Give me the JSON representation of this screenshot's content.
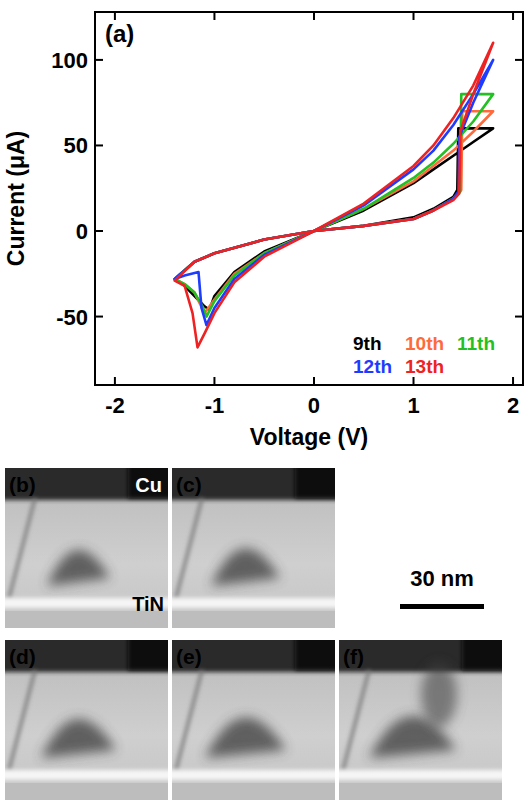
{
  "chart_data": {
    "type": "line",
    "title": "(a)",
    "x_label": "Voltage (V)",
    "y_label": "Current (μA)",
    "xlim": [
      -2.2,
      2.1
    ],
    "xticks": [
      -2,
      -1,
      0,
      1,
      2
    ],
    "ylim": [
      -90,
      128
    ],
    "yticks": [
      -50,
      0,
      50,
      100
    ],
    "grid": false,
    "legend": "lower right",
    "series": [
      {
        "name": "9th",
        "color": "#000000",
        "x": [
          0,
          0.5,
          1.0,
          1.2,
          1.4,
          1.44,
          1.45,
          1.6,
          1.8,
          1.6,
          1.4,
          1.2,
          1.0,
          0.5,
          0,
          -0.5,
          -0.8,
          -1.0,
          -1.05,
          -1.1,
          -1.2,
          -1.3,
          -1.4,
          -1.2,
          -1.0,
          -0.5,
          0
        ],
        "values": [
          0,
          3,
          8,
          13,
          20,
          24,
          60,
          60,
          60,
          52,
          44,
          36,
          28,
          12,
          0,
          -12,
          -24,
          -38,
          -46,
          -44,
          -38,
          -32,
          -28,
          -18,
          -13,
          -5,
          0
        ]
      },
      {
        "name": "10th",
        "color": "#ff6a3c",
        "x": [
          0,
          0.5,
          1.0,
          1.2,
          1.4,
          1.48,
          1.49,
          1.6,
          1.8,
          1.6,
          1.4,
          1.2,
          1.0,
          0.5,
          0,
          -0.5,
          -0.8,
          -1.0,
          -1.1,
          -1.15,
          -1.2,
          -1.3,
          -1.4,
          -1.2,
          -1.0,
          -0.5,
          0
        ],
        "values": [
          0,
          3,
          7,
          12,
          19,
          24,
          70,
          70,
          70,
          58,
          47,
          38,
          29,
          13,
          0,
          -13,
          -25,
          -40,
          -48,
          -42,
          -36,
          -31,
          -28,
          -18,
          -13,
          -5,
          0
        ]
      },
      {
        "name": "11th",
        "color": "#22c022",
        "x": [
          0,
          0.5,
          1.0,
          1.2,
          1.4,
          1.47,
          1.48,
          1.6,
          1.8,
          1.6,
          1.4,
          1.2,
          1.0,
          0.5,
          0,
          -0.5,
          -0.8,
          -1.0,
          -1.08,
          -1.12,
          -1.2,
          -1.3,
          -1.4,
          -1.2,
          -1.0,
          -0.5,
          0
        ],
        "values": [
          0,
          3,
          7,
          12,
          19,
          23,
          80,
          80,
          80,
          64,
          51,
          40,
          31,
          13,
          0,
          -13,
          -26,
          -41,
          -50,
          -44,
          -36,
          -31,
          -28,
          -18,
          -13,
          -5,
          0
        ]
      },
      {
        "name": "12th",
        "color": "#1e3cff",
        "x": [
          0,
          0.5,
          1.0,
          1.2,
          1.4,
          1.45,
          1.46,
          1.6,
          1.8,
          1.6,
          1.4,
          1.2,
          1.0,
          0.5,
          0,
          -0.5,
          -0.8,
          -1.0,
          -1.08,
          -1.13,
          -1.16,
          -1.3,
          -1.4,
          -1.2,
          -1.0,
          -0.5,
          0
        ],
        "values": [
          0,
          3,
          7,
          12,
          19,
          23,
          55,
          75,
          100,
          80,
          62,
          47,
          36,
          15,
          0,
          -14,
          -28,
          -45,
          -55,
          -45,
          -24,
          -26,
          -28,
          -18,
          -13,
          -5,
          0
        ]
      },
      {
        "name": "13th",
        "color": "#ee2222",
        "x": [
          0,
          0.5,
          1.0,
          1.2,
          1.4,
          1.46,
          1.47,
          1.6,
          1.8,
          1.6,
          1.4,
          1.2,
          1.0,
          0.5,
          0,
          -0.5,
          -0.8,
          -1.0,
          -1.1,
          -1.17,
          -1.22,
          -1.3,
          -1.4,
          -1.2,
          -1.0,
          -0.5,
          0
        ],
        "values": [
          0,
          3,
          7,
          12,
          18,
          22,
          58,
          80,
          110,
          85,
          66,
          50,
          38,
          16,
          0,
          -15,
          -30,
          -48,
          -60,
          -68,
          -48,
          -32,
          -29,
          -18,
          -13,
          -5,
          0
        ]
      }
    ]
  },
  "micrographs": {
    "panels": [
      {
        "label": "(b)",
        "top_label": "Cu",
        "bottom_label": "TiN"
      },
      {
        "label": "(c)"
      },
      {
        "label": "(d)"
      },
      {
        "label": "(e)"
      },
      {
        "label": "(f)"
      }
    ],
    "scale_bar": "30 nm"
  }
}
